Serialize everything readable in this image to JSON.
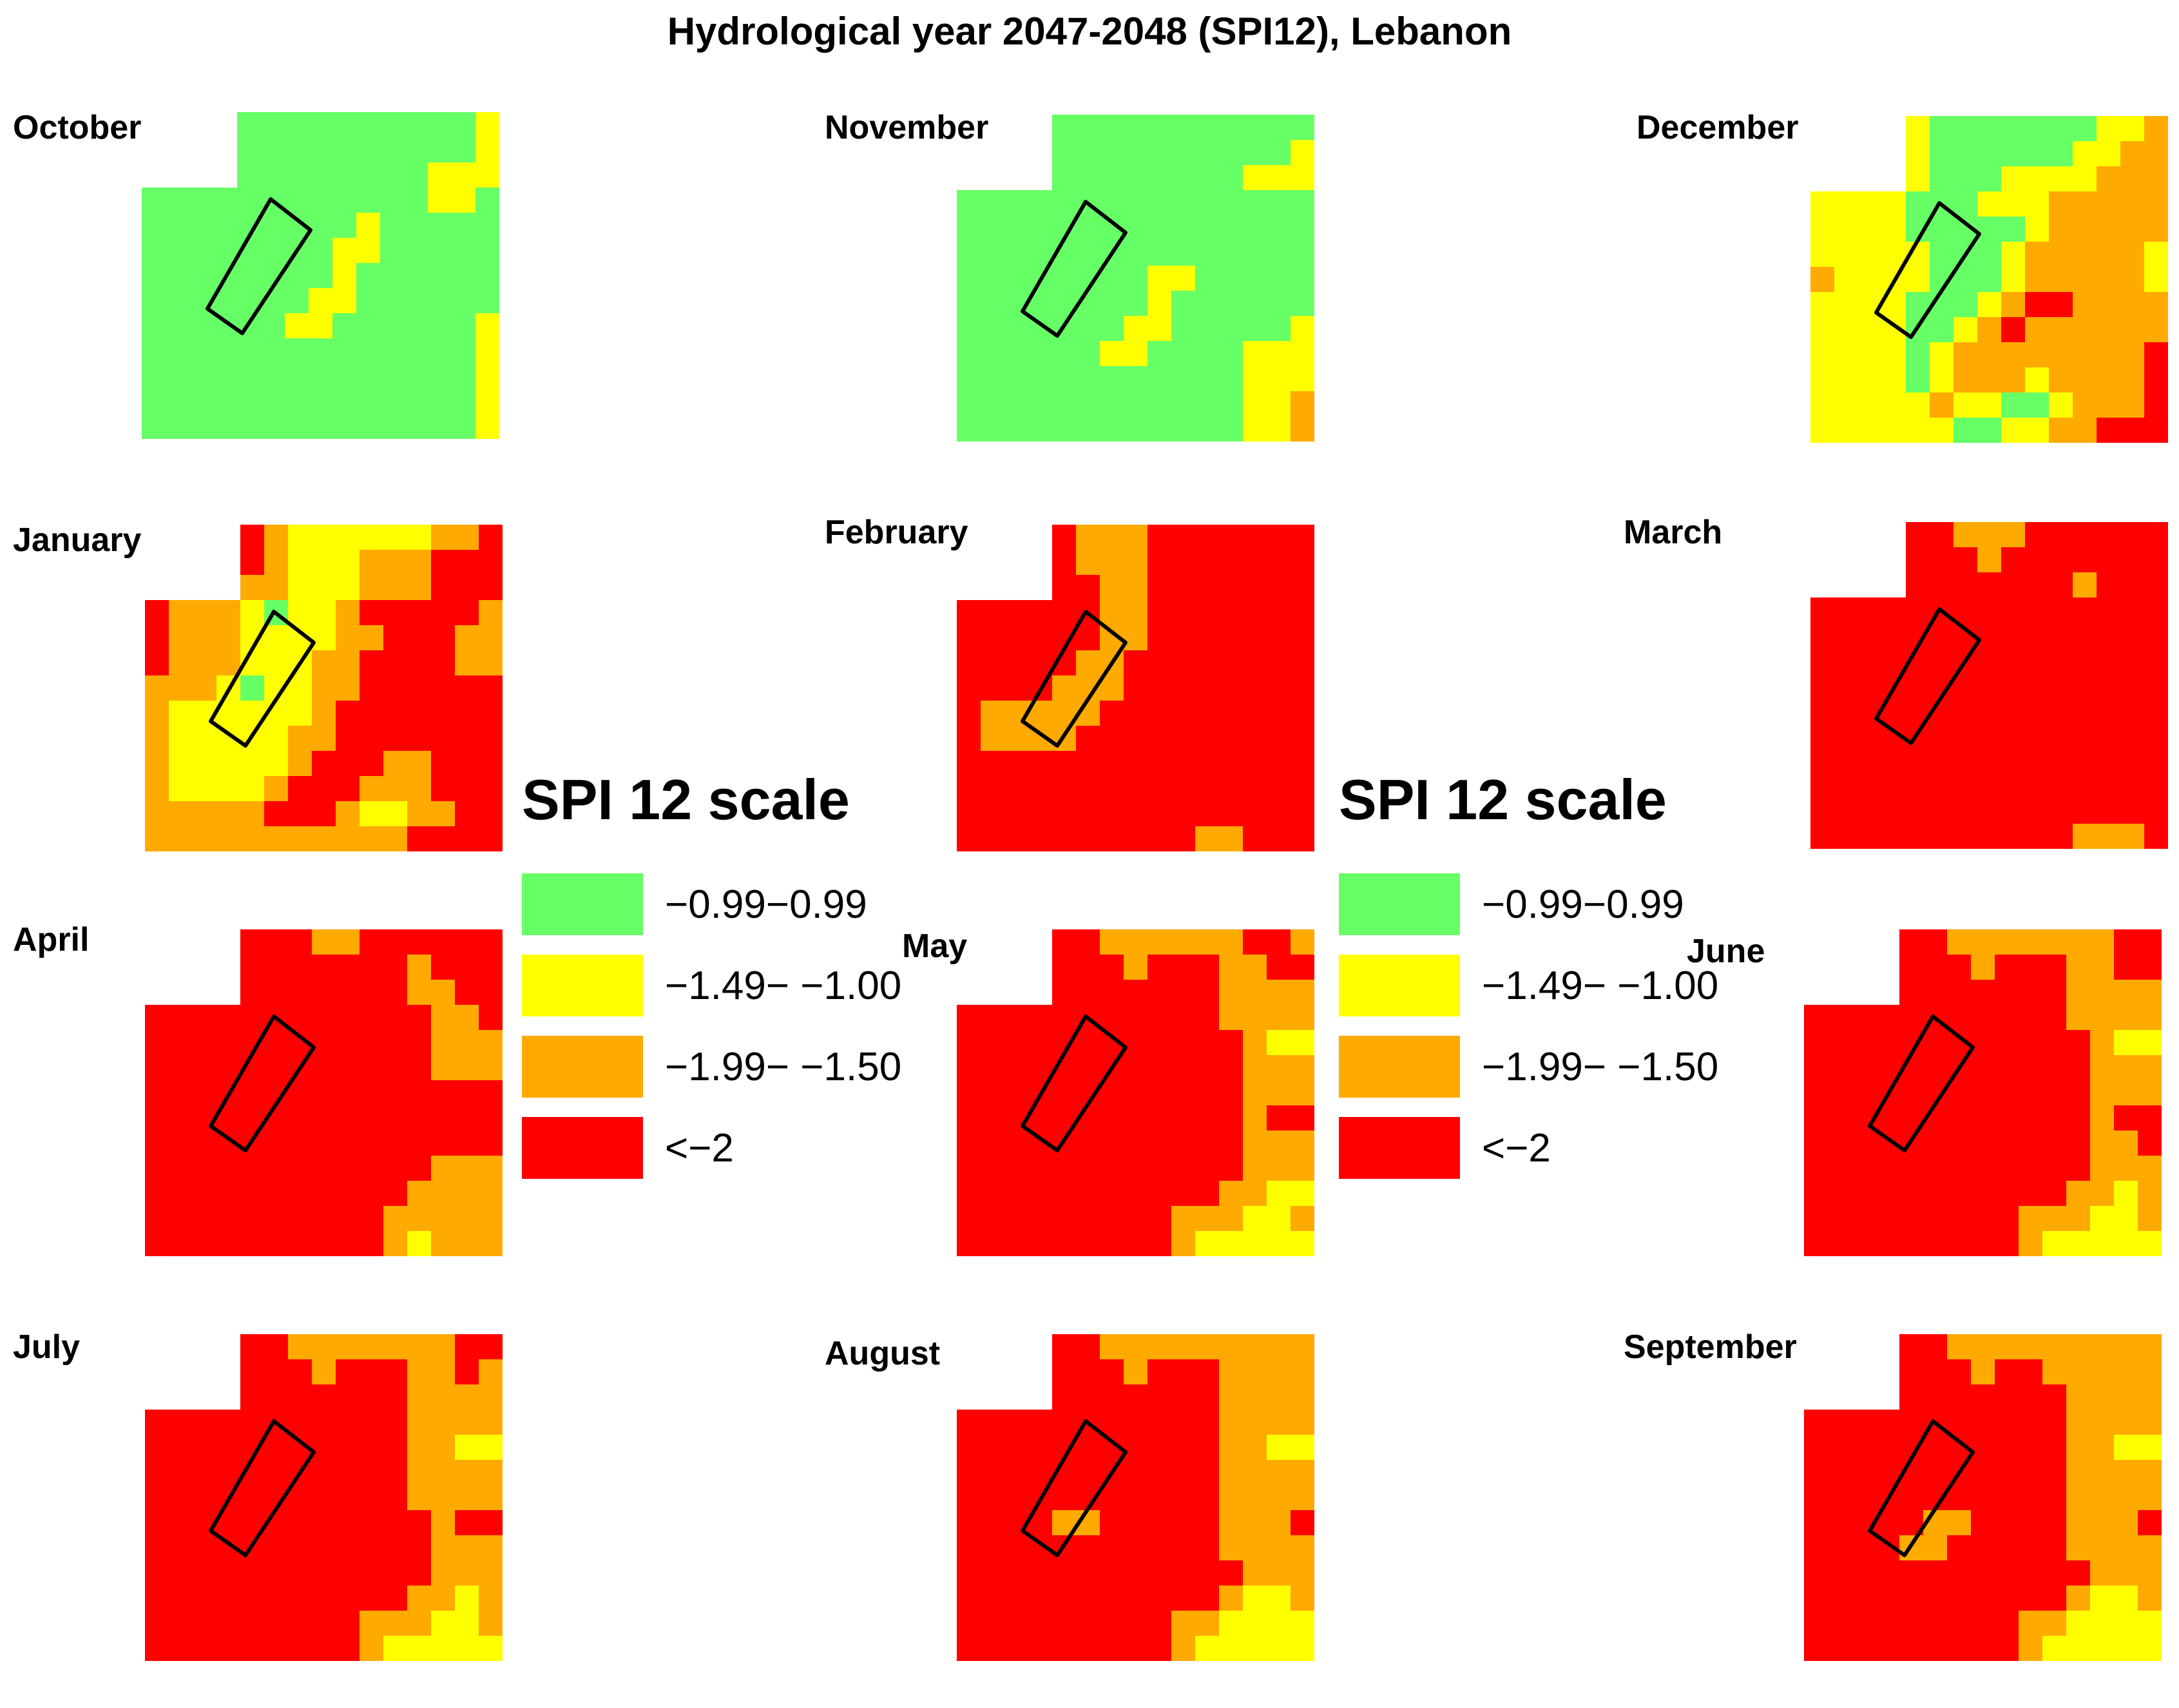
{
  "title": "Hydrological year 2047-2048 (SPI12), Lebanon",
  "legend": {
    "title": "SPI 12 scale",
    "items": [
      {
        "code": "G",
        "label": "−0.99−0.99",
        "color": "#66ff66"
      },
      {
        "code": "Y",
        "label": "−1.49− −1.00",
        "color": "#ffff00"
      },
      {
        "code": "O",
        "label": "−1.99− −1.50",
        "color": "#ffaa00"
      },
      {
        "code": "R",
        "label": "<−2",
        "color": "#ff0000"
      }
    ]
  },
  "chart_data": {
    "type": "heatmap",
    "title": "Hydrological year 2047-2048 (SPI12), Lebanon",
    "grid": {
      "columns": 15,
      "rows": 13,
      "note": "cell codes: G=−0.99–0.99, Y=−1.49–−1.00, O=−1.99–−1.50, R=<−2, .=outside map"
    },
    "legend_position": "center (repeated twice)",
    "panels": [
      {
        "month": "October",
        "rows": [
          "....GGGGGGGGGGY",
          "....GGGGGGGGGGY",
          "....GGGGGGGGYYY",
          "GGGGGGGGGGGGYYG",
          "GGGGGGGGGYGGGGG",
          "GGGGGGGGYYGGGGG",
          "GGGGGGGGYGGGGGG",
          "GGGGGGGYYGGGGGG",
          "GGGGGGYYGGGGGGY",
          "GGGGGGGGGGGGGGY",
          "GGGGGGGGGGGGGGY",
          "GGGGGGGGGGGGGGY",
          "GGGGGGGGGGGGGGY"
        ]
      },
      {
        "month": "November",
        "rows": [
          "....GGGGGGGGGGG",
          "....GGGGGGGGGGY",
          "....GGGGGGGGYYY",
          "GGGGGGGGGGGGGGG",
          "GGGGGGGGGGGGGGG",
          "GGGGGGGGGGGGGGG",
          "GGGGGGGGYYGGGGG",
          "GGGGGGGGYGGGGGG",
          "GGGGGGGYYGGGGGY",
          "GGGGGGYYGGGGYYY",
          "GGGGGGGGGGGGYYY",
          "GGGGGGGGGGGGYYO",
          "GGGGGGGGGGGGYYO"
        ]
      },
      {
        "month": "December",
        "rows": [
          "....YGGGGGGGYYO",
          "....YGGGGGGYYOO",
          "....YGGGYYYYOOO",
          "YYYYGGGYYYOOOOO",
          "YYYYGGGGGYOOOOO",
          "YYYYYGGGYOOOOOY",
          "OYYYYGGGYOOOOOY",
          "YYYYGGGYORROOOO",
          "YYYYGGYOROOOOOO",
          "YYYYGYOOOOOOOOR",
          "YYYYGYOOOYOOOOR",
          "YYYYYOYYGGYOOOR",
          "YYYYYYGGYYOORRR"
        ]
      },
      {
        "month": "January",
        "rows": [
          "....ROYYYYYYOOR",
          "....ROYYYOOORRR",
          "....OOYYYOOORRR",
          "ROOOYGYYORRRRRO",
          "ROOOYYYYOORRROO",
          "ROOOYYYOORRRROO",
          "OOOYGYYOORRRRRR",
          "OYYYYYYORRRRRRR",
          "OYYYYYOORRRRRRR",
          "OYYYYYORRROORRR",
          "OYYYYORRROOORRR",
          "OOOOORRROYYOORR",
          "OOOOOOOOOOORRRR"
        ]
      },
      {
        "month": "February",
        "rows": [
          "....ROOORRRRRRR",
          "....ROOORRRRRRR",
          "....RROORRRRRRR",
          "RRRRRROORRRRRRR",
          "RRRRRROORRRRRRR",
          "RRRRROORRRRRRRR",
          "RRRROOORRRRRRRR",
          "ROOOOORRRRRRRRR",
          "ROOOORRRRRRRRRR",
          "RRRRRRRRRRRRRRR",
          "RRRRRRRRRRRRRRR",
          "RRRRRRRRRRRRRRR",
          "RRRRRRRRRROORRR"
        ]
      },
      {
        "month": "March",
        "rows": [
          "....RROOORRRRRR",
          "....RRRORRRRRRR",
          "....RRRRRRRORRR",
          "RRRRRRRRRRRRRRR",
          "RRRRRRRRRRRRRRR",
          "RRRRRRRRRRRRRRR",
          "RRRRRRRRRRRRRRR",
          "RRRRRRRRRRRRRRR",
          "RRRRRRRRRRRRRRR",
          "RRRRRRRRRRRRRRR",
          "RRRRRRRRRRRRRRR",
          "RRRRRRRRRRRRRRR",
          "RRRRRRRRRRROOOR"
        ]
      },
      {
        "month": "April",
        "rows": [
          "....RRROORRRRRR",
          "....RRRRRRRORRR",
          "....RRRRRRROORR",
          "RRRRRRRRRRRROOR",
          "RRRRRRRRRRRROOO",
          "RRRRRRRRRRRROOO",
          "RRRRRRRRRRRRRRR",
          "RRRRRRRRRRRRRRR",
          "RRRRRRRRRRRRRRR",
          "RRRRRRRRRRRROOO",
          "RRRRRRRRRRROOOO",
          "RRRRRRRRRROOOOO",
          "RRRRRRRRRROYOOO"
        ]
      },
      {
        "month": "May",
        "rows": [
          "....RROOOOOORRO",
          "....RRRORRROORR",
          "....RRRRRRROOOO",
          "RRRRRRRRRRROOOO",
          "RRRRRRRRRRRROYY",
          "RRRRRRRRRRRROOO",
          "RRRRRRRRRRRROOO",
          "RRRRRRRRRRRRORR",
          "RRRRRRRRRRRROOO",
          "RRRRRRRRRRRROOO",
          "RRRRRRRRRRROOYY",
          "RRRRRRRRROOOYYO",
          "RRRRRRRRROYYYYY"
        ]
      },
      {
        "month": "June",
        "rows": [
          "....RROOOOOOORR",
          "....RRRORRROORR",
          "....RRRRRRROOOO",
          "RRRRRRRRRRROOOO",
          "RRRRRRRRRRRROYY",
          "RRRRRRRRRRRROOO",
          "RRRRRRRRRRRROOO",
          "RRRRRRRRRRRRORR",
          "RRRRRRRRRRRROOR",
          "RRRRRRRRRRRROOO",
          "RRRRRRRRRRROOYO",
          "RRRRRRRRROOOYYO",
          "RRRRRRRRROYYYYY"
        ]
      },
      {
        "month": "July",
        "rows": [
          "....RROOOOOOORR",
          "....RRRORRROORO",
          "....RRRRRRROOOO",
          "RRRRRRRRRRROOOO",
          "RRRRRRRRRRROOYY",
          "RRRRRRRRRRROOOO",
          "RRRRRRRRRRROOOO",
          "RRRRRRRRRRRRORR",
          "RRRRRRRRRRRROOO",
          "RRRRRRRRRRRROOO",
          "RRRRRRRRRRROOYO",
          "RRRRRRRRROOOYYO",
          "RRRRRRRRROYYYYY"
        ]
      },
      {
        "month": "August",
        "rows": [
          "....RROOOOOOOOO",
          "....RRRORRROOOO",
          "....RRRRRRROOOO",
          "RRRRRRRRRRROOOO",
          "RRRRRRRRRRROOYY",
          "RRRRRRRRRRROOOO",
          "RRRRRRRRRRROOOO",
          "RRRROORRRRROOOR",
          "RRRRRRRRRRROOOO",
          "RRRRRRRRRRRROOO",
          "RRRRRRRRRRROYYO",
          "RRRRRRRRROOYYYY",
          "RRRRRRRRROYYYYY"
        ]
      },
      {
        "month": "September",
        "rows": [
          "....RROOOOOOOOO",
          "....RRRORROOOOO",
          "....RRRRRRROOOO",
          "RRRRRRRRRRROOOO",
          "RRRRRRRRRRROOYY",
          "RRRRRRRRRRROOOO",
          "RRRRRRRRRRROOOO",
          "RRRRROORRRROOOR",
          "RRRROORRRRROOOO",
          "RRRRRRRRRRRROOO",
          "RRRRRRRRRRROYYO",
          "RRRRRRRRROOYYYY",
          "RRRRRRRRROYYYYY"
        ]
      }
    ]
  },
  "panels": [
    {
      "label": "October"
    },
    {
      "label": "November"
    },
    {
      "label": "December"
    },
    {
      "label": "January"
    },
    {
      "label": "February"
    },
    {
      "label": "March"
    },
    {
      "label": "April"
    },
    {
      "label": "May"
    },
    {
      "label": "June"
    },
    {
      "label": "July"
    },
    {
      "label": "August"
    },
    {
      "label": "September"
    }
  ]
}
